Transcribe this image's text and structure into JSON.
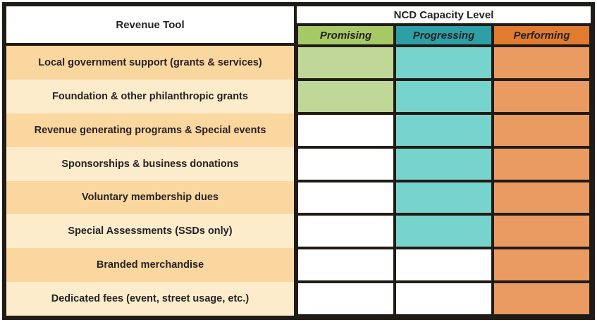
{
  "chart_data": {
    "type": "table",
    "title": "NCD Capacity Level",
    "row_header_label": "Revenue Tool",
    "columns": [
      "Promising",
      "Progressing",
      "Performing"
    ],
    "rows": [
      "Local government support (grants & services)",
      "Foundation & other philanthropic grants",
      "Revenue generating programs & Special events",
      "Sponsorships & business donations",
      "Voluntary membership dues",
      "Special Assessments (SSDs only)",
      "Branded merchandise",
      "Dedicated fees (event, street usage, etc.)"
    ],
    "matrix": [
      [
        1,
        1,
        1
      ],
      [
        1,
        1,
        1
      ],
      [
        0,
        1,
        1
      ],
      [
        0,
        1,
        1
      ],
      [
        0,
        1,
        1
      ],
      [
        0,
        1,
        1
      ],
      [
        0,
        0,
        1
      ],
      [
        0,
        0,
        1
      ]
    ],
    "legend_position": "none",
    "grid": true
  },
  "styles": {
    "column_header_colors": [
      "#a5c965",
      "#2d9fa7",
      "#e07b2f"
    ],
    "column_fill_colors": [
      "#bfd898",
      "#77d4cd",
      "#ea9b62"
    ],
    "row_label_bg_odd": "#fbd7a0",
    "row_label_bg_even": "#fdeccb",
    "empty_cell_color": "#ffffff",
    "grid_line_color": "#201b15",
    "text_color": "#262223"
  }
}
